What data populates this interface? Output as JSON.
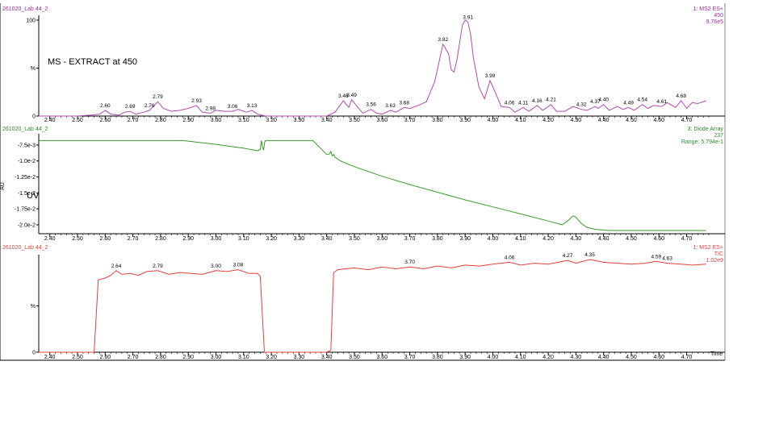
{
  "colors": {
    "ms": "#b04bb0",
    "uv": "#3a9a2a",
    "tic": "#e0413d",
    "ms_header": "#9b2a9b",
    "uv_header": "#2e8b2e",
    "tic_header": "#e0413d",
    "axis": "#000000"
  },
  "chart_data": [
    {
      "type": "line",
      "panel": "ms",
      "sample_label": "261020_Lab 44_2",
      "info_lines": [
        "1: MS2 ES+",
        "450",
        "9.76e5"
      ],
      "annotation": "MS - EXTRACT at 450",
      "xlim": [
        2.36,
        4.78
      ],
      "ylim": [
        0,
        100
      ],
      "y_ticks": [
        {
          "v": 0,
          "label": "0"
        },
        {
          "v": 50,
          "label": "%"
        },
        {
          "v": 100,
          "label": "100"
        }
      ],
      "x": [
        2.36,
        2.4,
        2.45,
        2.5,
        2.55,
        2.58,
        2.6,
        2.62,
        2.65,
        2.67,
        2.69,
        2.71,
        2.74,
        2.76,
        2.77,
        2.79,
        2.81,
        2.84,
        2.87,
        2.9,
        2.93,
        2.95,
        2.98,
        3.0,
        3.03,
        3.06,
        3.08,
        3.11,
        3.13,
        3.15,
        3.18,
        3.22,
        3.28,
        3.34,
        3.4,
        3.43,
        3.46,
        3.48,
        3.49,
        3.51,
        3.53,
        3.56,
        3.58,
        3.6,
        3.63,
        3.65,
        3.68,
        3.7,
        3.73,
        3.76,
        3.79,
        3.82,
        3.84,
        3.85,
        3.86,
        3.87,
        3.89,
        3.9,
        3.91,
        3.92,
        3.93,
        3.95,
        3.97,
        3.99,
        4.01,
        4.03,
        4.06,
        4.08,
        4.11,
        4.13,
        4.16,
        4.18,
        4.21,
        4.23,
        4.26,
        4.29,
        4.32,
        4.34,
        4.37,
        4.38,
        4.4,
        4.42,
        4.45,
        4.47,
        4.49,
        4.51,
        4.54,
        4.56,
        4.58,
        4.61,
        4.63,
        4.66,
        4.68,
        4.7,
        4.72,
        4.74,
        4.77
      ],
      "y": [
        0,
        0,
        0,
        0,
        1,
        2,
        6,
        2,
        1,
        4,
        5,
        2,
        4,
        6,
        9,
        15,
        8,
        5,
        6,
        8,
        11,
        4,
        3,
        6,
        5,
        5,
        7,
        4,
        6,
        2,
        0,
        0,
        0,
        0,
        0,
        4,
        16,
        9,
        17,
        10,
        3,
        7,
        3,
        2,
        6,
        4,
        9,
        8,
        11,
        15,
        36,
        75,
        65,
        48,
        46,
        58,
        95,
        100,
        98,
        85,
        60,
        30,
        18,
        37,
        24,
        10,
        9,
        4,
        9,
        5,
        11,
        6,
        12,
        5,
        5,
        10,
        7,
        6,
        10,
        8,
        12,
        6,
        10,
        7,
        9,
        6,
        12,
        8,
        11,
        10,
        14,
        9,
        16,
        8,
        14,
        13,
        16
      ],
      "peak_labels": [
        {
          "x": 2.6,
          "label": "2.60"
        },
        {
          "x": 2.69,
          "label": "2.69"
        },
        {
          "x": 2.76,
          "label": "2.76"
        },
        {
          "x": 2.79,
          "label": "2.79"
        },
        {
          "x": 2.93,
          "label": "2.93"
        },
        {
          "x": 2.98,
          "label": "2.98"
        },
        {
          "x": 3.06,
          "label": "3.06"
        },
        {
          "x": 3.13,
          "label": "3.13"
        },
        {
          "x": 3.46,
          "label": "3.46"
        },
        {
          "x": 3.49,
          "label": "3.49"
        },
        {
          "x": 3.56,
          "label": "3.56"
        },
        {
          "x": 3.63,
          "label": "3.63"
        },
        {
          "x": 3.68,
          "label": "3.68"
        },
        {
          "x": 3.82,
          "label": "3.82"
        },
        {
          "x": 3.91,
          "label": "3.91"
        },
        {
          "x": 3.99,
          "label": "3.99"
        },
        {
          "x": 4.06,
          "label": "4.06"
        },
        {
          "x": 4.11,
          "label": "4.11"
        },
        {
          "x": 4.16,
          "label": "4.16"
        },
        {
          "x": 4.21,
          "label": "4.21"
        },
        {
          "x": 4.32,
          "label": "4.32"
        },
        {
          "x": 4.37,
          "label": "4.37"
        },
        {
          "x": 4.4,
          "label": "4.40"
        },
        {
          "x": 4.49,
          "label": "4.49"
        },
        {
          "x": 4.54,
          "label": "4.54"
        },
        {
          "x": 4.61,
          "label": "4.61"
        },
        {
          "x": 4.68,
          "label": "4.68"
        }
      ]
    },
    {
      "type": "line",
      "panel": "uv",
      "sample_label": "261020_Lab 44_2",
      "info_lines": [
        "3: Diode Array",
        "237",
        "Range: 5.794e-1"
      ],
      "annotation": "UV",
      "y_axis_label": "AU",
      "xlim": [
        2.36,
        4.78
      ],
      "ylim": [
        -0.0214,
        -0.0065
      ],
      "y_ticks": [
        {
          "v": -0.0075,
          "label": "-7.5e-3"
        },
        {
          "v": -0.01,
          "label": "-1.0e-2"
        },
        {
          "v": -0.0125,
          "label": "-1.25e-2"
        },
        {
          "v": -0.015,
          "label": "-1.5e-2"
        },
        {
          "v": -0.0175,
          "label": "-1.75e-2"
        },
        {
          "v": -0.02,
          "label": "-2.0e-2"
        }
      ],
      "x": [
        2.36,
        2.5,
        2.7,
        2.88,
        2.95,
        3.0,
        3.05,
        3.1,
        3.15,
        3.16,
        3.164,
        3.168,
        3.172,
        3.176,
        3.18,
        3.2,
        3.3,
        3.35,
        3.38,
        3.4,
        3.41,
        3.415,
        3.42,
        3.425,
        3.43,
        3.45,
        3.5,
        3.6,
        3.7,
        3.8,
        3.9,
        4.0,
        4.1,
        4.2,
        4.25,
        4.27,
        4.29,
        4.3,
        4.32,
        4.34,
        4.37,
        4.42,
        4.45,
        4.5,
        4.6,
        4.7,
        4.77
      ],
      "y": [
        -0.0068,
        -0.0068,
        -0.0068,
        -0.0068,
        -0.00715,
        -0.0074,
        -0.0077,
        -0.008,
        -0.0084,
        -0.0082,
        -0.0068,
        -0.0078,
        -0.0083,
        -0.007,
        -0.0068,
        -0.0068,
        -0.0068,
        -0.0068,
        -0.0081,
        -0.009,
        -0.0089,
        -0.0085,
        -0.0092,
        -0.009,
        -0.0094,
        -0.01,
        -0.0109,
        -0.0124,
        -0.0137,
        -0.0149,
        -0.0161,
        -0.0172,
        -0.0183,
        -0.0194,
        -0.02,
        -0.0194,
        -0.0186,
        -0.0188,
        -0.0198,
        -0.0204,
        -0.0207,
        -0.0209,
        -0.0209,
        -0.0209,
        -0.0209,
        -0.0209,
        -0.0209
      ]
    },
    {
      "type": "line",
      "panel": "tic",
      "sample_label": "261020_Lab 44_2",
      "info_lines": [
        "1: MS2 ES+",
        "TIC",
        "1.02e9"
      ],
      "x_axis_label": "Time",
      "xlim": [
        2.36,
        4.78
      ],
      "ylim": [
        0,
        100
      ],
      "y_ticks": [
        {
          "v": 0,
          "label": "0"
        },
        {
          "v": 50,
          "label": "%"
        }
      ],
      "x": [
        2.36,
        2.5,
        2.56,
        2.575,
        2.6,
        2.62,
        2.64,
        2.66,
        2.69,
        2.72,
        2.75,
        2.79,
        2.83,
        2.87,
        2.91,
        2.95,
        3.0,
        3.04,
        3.08,
        3.12,
        3.15,
        3.16,
        3.175,
        3.19,
        3.2,
        3.3,
        3.4,
        3.415,
        3.425,
        3.44,
        3.5,
        3.55,
        3.6,
        3.65,
        3.7,
        3.75,
        3.8,
        3.85,
        3.9,
        3.95,
        4.0,
        4.06,
        4.1,
        4.15,
        4.2,
        4.27,
        4.3,
        4.35,
        4.4,
        4.45,
        4.5,
        4.55,
        4.59,
        4.63,
        4.68,
        4.72,
        4.77
      ],
      "y": [
        0,
        0,
        0,
        78,
        80,
        83,
        88,
        84,
        85,
        83,
        87,
        88,
        84,
        86,
        85,
        84,
        88,
        87,
        89,
        85,
        85,
        82,
        0,
        0,
        0,
        0,
        0,
        2,
        86,
        89,
        91,
        89,
        92,
        90,
        92,
        90,
        93,
        91,
        94,
        93,
        95,
        97,
        94,
        96,
        95,
        99,
        96,
        100,
        97,
        96,
        95,
        96,
        98,
        96,
        95,
        94,
        95
      ],
      "peak_labels": [
        {
          "x": 2.64,
          "label": "2.64"
        },
        {
          "x": 2.79,
          "label": "2.79"
        },
        {
          "x": 3.0,
          "label": "3.00"
        },
        {
          "x": 3.08,
          "label": "3.08"
        },
        {
          "x": 3.7,
          "label": "3.70"
        },
        {
          "x": 4.06,
          "label": "4.06"
        },
        {
          "x": 4.27,
          "label": "4.27"
        },
        {
          "x": 4.35,
          "label": "4.35"
        },
        {
          "x": 4.59,
          "label": "4.59"
        },
        {
          "x": 4.63,
          "label": "4.63"
        }
      ]
    }
  ],
  "x_ticks": [
    "2.40",
    "2.50",
    "2.60",
    "2.70",
    "2.80",
    "2.90",
    "3.00",
    "3.10",
    "3.20",
    "3.30",
    "3.40",
    "3.50",
    "3.60",
    "3.70",
    "3.80",
    "3.90",
    "4.00",
    "4.10",
    "4.20",
    "4.30",
    "4.40",
    "4.50",
    "4.60",
    "4.70"
  ]
}
